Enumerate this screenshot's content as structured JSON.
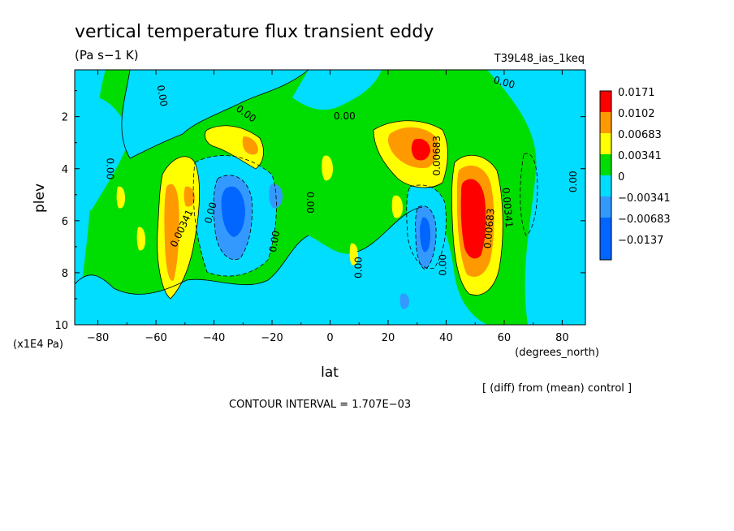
{
  "chart_data": {
    "type": "contour",
    "title": "vertical temperature flux transient eddy",
    "units": "(Pa s−1 K)",
    "experiment": "T39L48_ias_1keq",
    "xlabel": "lat",
    "xunits": "(degrees_north)",
    "ylabel": "plev",
    "yunits": "(x1E4 Pa)",
    "xlim": [
      -88,
      88
    ],
    "ylim": [
      10,
      0.2
    ],
    "x_ticks": [
      "−80",
      "−60",
      "−40",
      "−20",
      "0",
      "20",
      "40",
      "60",
      "80"
    ],
    "y_ticks": [
      "2",
      "4",
      "6",
      "8",
      "10"
    ],
    "note": "[ (diff) from (mean) control ]",
    "contour_interval": "CONTOUR INTERVAL = 1.707E−03",
    "legend": [
      {
        "label": "0.0171",
        "color": "#ff0000"
      },
      {
        "label": "0.0102",
        "color": "#ff9900"
      },
      {
        "label": "0.00683",
        "color": "#ffff00"
      },
      {
        "label": "0.00341",
        "color": "#00dd00"
      },
      {
        "label": "0",
        "color": "#00ddff"
      },
      {
        "label": "−0.00341",
        "color": "#3399ff"
      },
      {
        "label": "−0.00683",
        "color": "#0066ff"
      },
      {
        "label": "−0.0137",
        "color": "#0066ff"
      }
    ],
    "contour_labels": [
      {
        "text": "0.00",
        "lat": -58,
        "p": 1.2,
        "rot": 80
      },
      {
        "text": "0.00",
        "lat": -29,
        "p": 1.9,
        "rot": 35
      },
      {
        "text": "0.00",
        "lat": -76,
        "p": 4.0,
        "rot": 90
      },
      {
        "text": "0.00341",
        "lat": -51,
        "p": 6.3,
        "rot": -65
      },
      {
        "text": "0.00",
        "lat": -41,
        "p": 5.7,
        "rot": -75
      },
      {
        "text": "0.00",
        "lat": -7,
        "p": 5.3,
        "rot": 90
      },
      {
        "text": "0.00",
        "lat": -19,
        "p": 6.8,
        "rot": -80
      },
      {
        "text": "0.00",
        "lat": 5,
        "p": 2.0,
        "rot": 0
      },
      {
        "text": "0.00",
        "lat": 10,
        "p": 7.8,
        "rot": -90
      },
      {
        "text": "0.00",
        "lat": 39,
        "p": 7.7,
        "rot": -90
      },
      {
        "text": "0.00683",
        "lat": 37,
        "p": 3.5,
        "rot": -90
      },
      {
        "text": "0.00683",
        "lat": 55,
        "p": 6.3,
        "rot": -85
      },
      {
        "text": "0.00341",
        "lat": 61,
        "p": 5.5,
        "rot": 85
      },
      {
        "text": "0.00",
        "lat": 84,
        "p": 4.5,
        "rot": -90
      },
      {
        "text": "0.00",
        "lat": 60,
        "p": 0.7,
        "rot": 15
      }
    ]
  }
}
